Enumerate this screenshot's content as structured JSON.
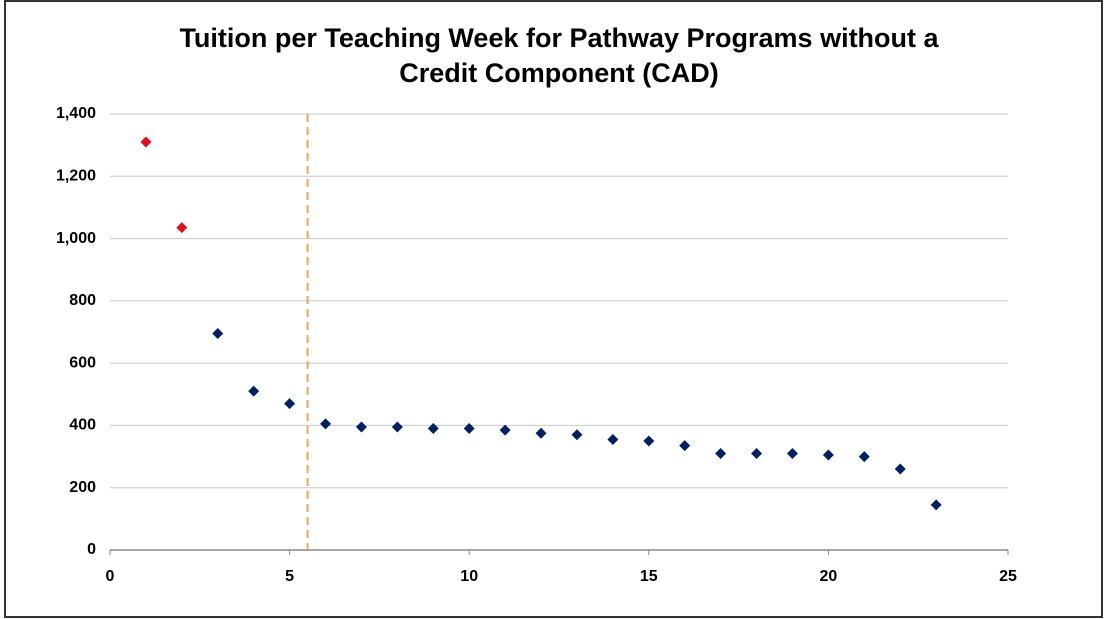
{
  "chart_data": {
    "type": "scatter",
    "title": [
      "Tuition per Teaching Week for Pathway Programs without a",
      "Credit Component (CAD)"
    ],
    "series": [
      {
        "x": [
          1,
          2,
          3,
          4,
          5,
          6,
          7,
          8,
          9,
          10,
          11,
          12,
          13,
          14,
          15,
          16,
          17,
          18,
          19,
          20,
          21,
          22,
          23
        ],
        "values": [
          1310,
          1035,
          695,
          510,
          470,
          405,
          395,
          395,
          390,
          390,
          385,
          375,
          370,
          355,
          350,
          335,
          310,
          310,
          310,
          305,
          300,
          260,
          145
        ],
        "colors": [
          "#e0111f",
          "#e0111f",
          "#002060",
          "#002060",
          "#002060",
          "#002060",
          "#002060",
          "#002060",
          "#002060",
          "#002060",
          "#002060",
          "#002060",
          "#002060",
          "#002060",
          "#002060",
          "#002060",
          "#002060",
          "#002060",
          "#002060",
          "#002060",
          "#002060",
          "#002060",
          "#002060"
        ]
      }
    ],
    "xlim": [
      0,
      25
    ],
    "xticks": [
      0,
      5,
      10,
      15,
      20,
      25
    ],
    "ylim": [
      0,
      1400
    ],
    "yticks": [
      0,
      200,
      400,
      600,
      800,
      {
        "value": 1000,
        "label": "1,000"
      },
      {
        "value": 1200,
        "label": "1,200"
      },
      {
        "value": 1400,
        "label": "1,400"
      }
    ],
    "grid": true,
    "vline": {
      "x": 5.5,
      "color": "#f4a259"
    }
  }
}
